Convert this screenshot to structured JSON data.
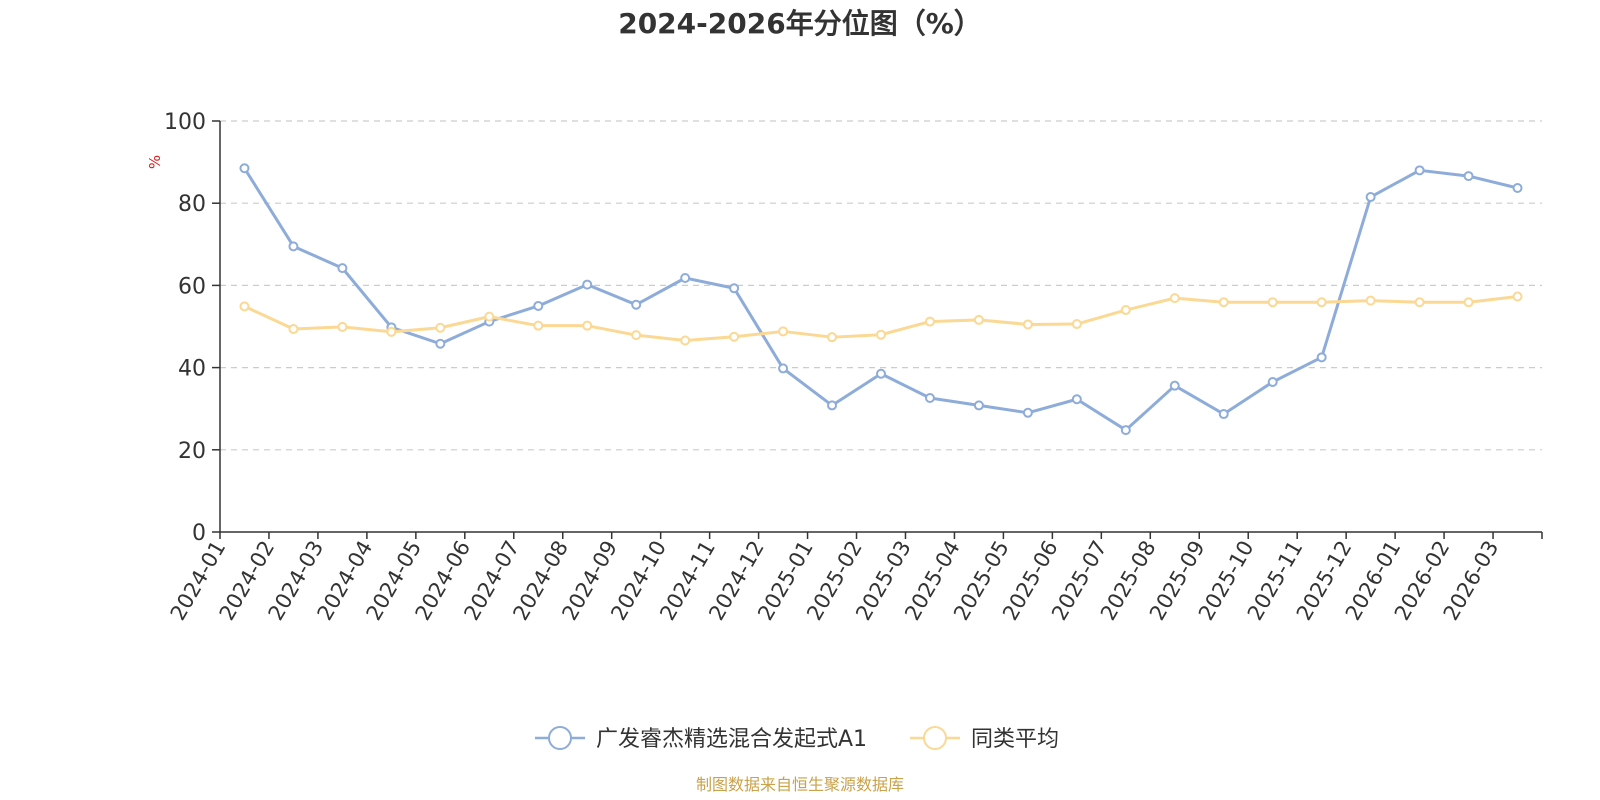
{
  "chart_data": {
    "type": "line",
    "title": "2024-2026年分位图（%）",
    "ylabel": "%",
    "xlabel": "",
    "ylim": [
      0,
      100
    ],
    "yticks": [
      0,
      20,
      40,
      60,
      80,
      100
    ],
    "grid": true,
    "legend_position": "bottom",
    "categories": [
      "2024-01",
      "2024-02",
      "2024-03",
      "2024-04",
      "2024-05",
      "2024-06",
      "2024-07",
      "2024-08",
      "2024-09",
      "2024-10",
      "2024-11",
      "2024-12",
      "2025-01",
      "2025-02",
      "2025-03",
      "2025-04",
      "2025-05",
      "2025-06",
      "2025-07",
      "2025-08",
      "2025-09",
      "2025-10",
      "2025-11",
      "2025-12",
      "2026-01",
      "2026-02",
      "2026-03"
    ],
    "series": [
      {
        "name": "广发睿杰精选混合发起式A1",
        "color": "#8eacd9",
        "values": [
          88.5,
          69.5,
          64.2,
          49.8,
          45.8,
          51.2,
          55.0,
          60.2,
          55.3,
          61.8,
          59.3,
          39.8,
          30.8,
          38.5,
          32.6,
          30.8,
          29.0,
          32.3,
          24.8,
          35.6,
          28.7,
          36.5,
          42.5,
          81.5,
          88.0,
          86.6,
          83.7
        ]
      },
      {
        "name": "同类平均",
        "color": "#fbd893",
        "values": [
          54.9,
          49.4,
          49.9,
          48.7,
          49.7,
          52.4,
          50.2,
          50.2,
          47.9,
          46.6,
          47.5,
          48.8,
          47.4,
          48.0,
          51.2,
          51.6,
          50.5,
          50.6,
          54.0,
          56.9,
          55.9,
          55.9,
          55.9,
          56.3,
          55.9,
          55.9,
          57.3
        ]
      }
    ]
  },
  "source_text": "制图数据来自恒生聚源数据库"
}
